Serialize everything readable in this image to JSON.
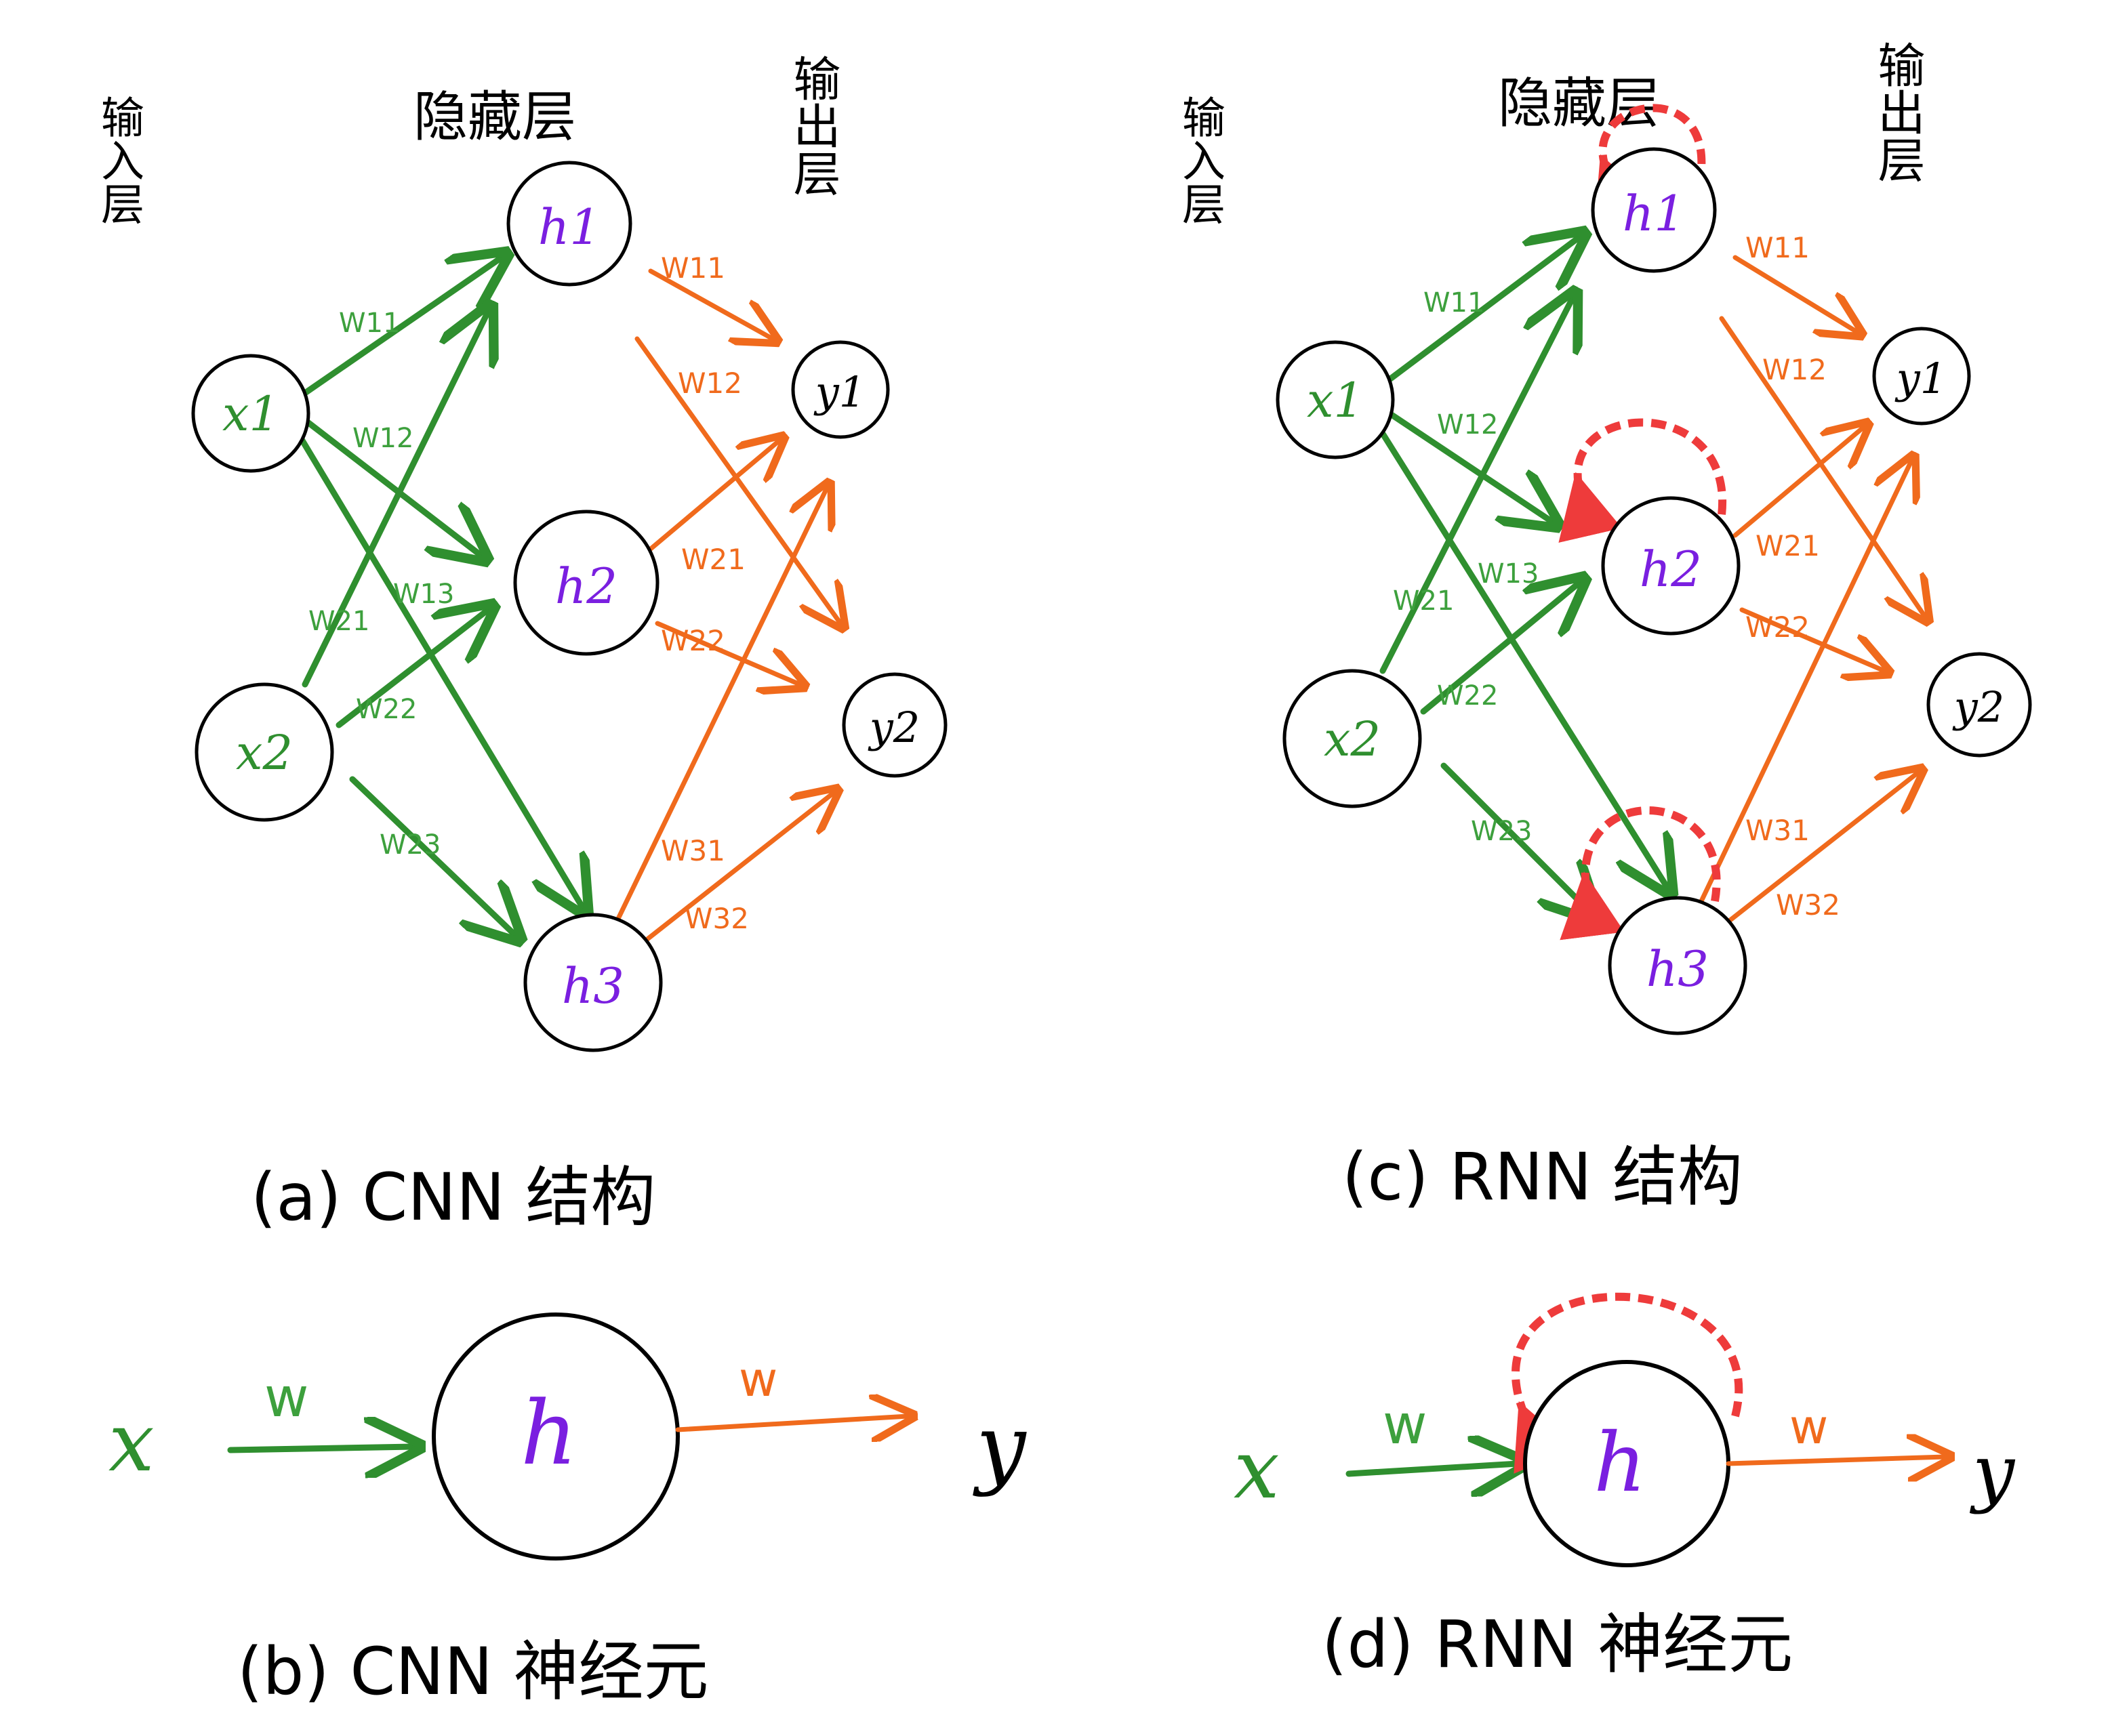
{
  "panels": {
    "a": {
      "input_layer": "输入层",
      "hidden_layer": "隐藏层",
      "output_layer": "输出层",
      "inputs": [
        "x1",
        "x2"
      ],
      "hidden": [
        "h1",
        "h2",
        "h3"
      ],
      "outputs": [
        "y1",
        "y2"
      ],
      "input_weights": [
        "W11",
        "W12",
        "W13",
        "W21",
        "W22",
        "W23"
      ],
      "output_weights": [
        "W11",
        "W12",
        "W21",
        "W22",
        "W31",
        "W32"
      ],
      "caption": "(a) CNN 结构"
    },
    "b": {
      "input": "x",
      "input_weight": "w",
      "neuron": "h",
      "output_weight": "w",
      "output": "y",
      "caption": "(b) CNN 神经元"
    },
    "c": {
      "input_layer": "输入层",
      "hidden_layer": "隐藏层",
      "output_layer": "输出层",
      "inputs": [
        "x1",
        "x2"
      ],
      "hidden": [
        "h1",
        "h2",
        "h3"
      ],
      "outputs": [
        "y1",
        "y2"
      ],
      "input_weights": [
        "W11",
        "W12",
        "W13",
        "W21",
        "W22",
        "W23"
      ],
      "output_weights": [
        "W11",
        "W12",
        "W21",
        "W22",
        "W31",
        "W32"
      ],
      "caption": "(c) RNN 结构"
    },
    "d": {
      "input": "x",
      "input_weight": "w",
      "neuron": "h",
      "output_weight": "w",
      "output": "y",
      "caption": "(d) RNN 神经元"
    }
  },
  "colors": {
    "input_edges": "#2f8f2f",
    "output_edges": "#f06a1c",
    "recurrent_loop": "#ee3b3b",
    "hidden_labels": "#7a1fe0"
  }
}
